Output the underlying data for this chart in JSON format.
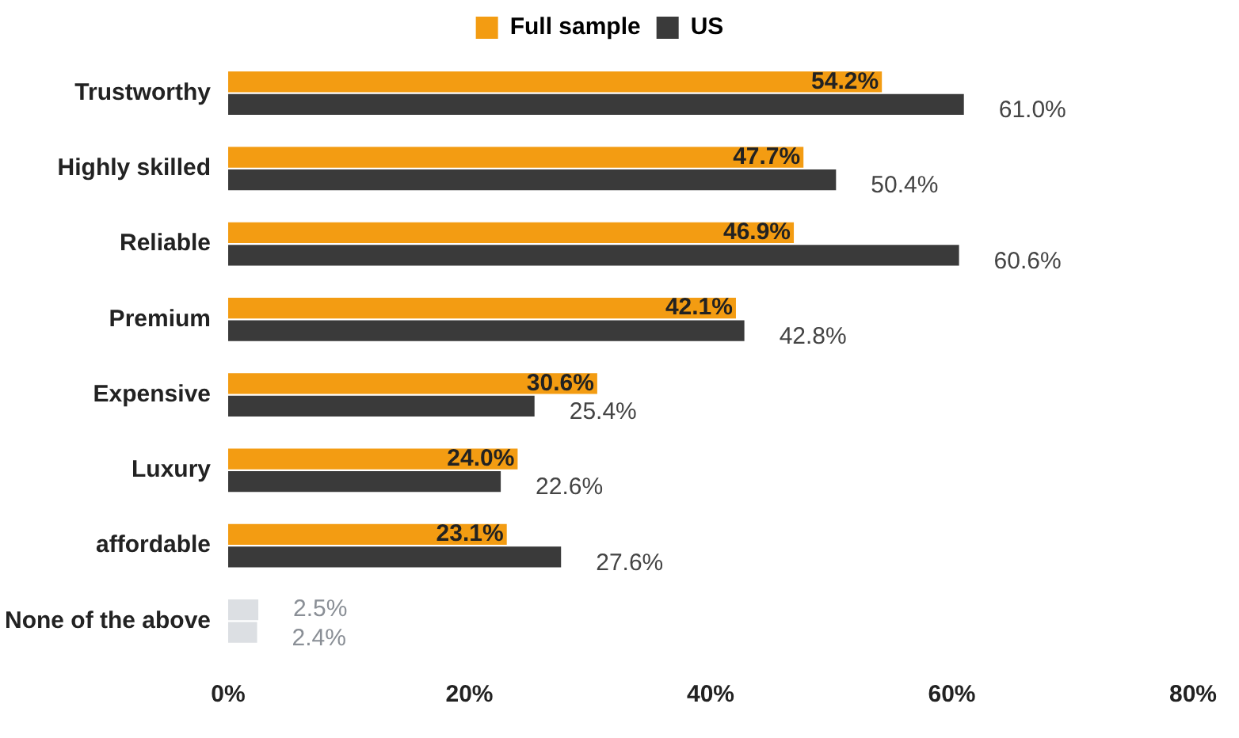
{
  "chart_data": {
    "type": "bar",
    "orientation": "horizontal",
    "categories": [
      "Trustworthy",
      "Highly skilled",
      "Reliable",
      "Premium",
      "Expensive",
      "Luxury",
      "affordable",
      "None of the above"
    ],
    "series": [
      {
        "name": "Full sample",
        "color": "#f39c12",
        "colors": [
          "#f39c12",
          "#f39c12",
          "#f39c12",
          "#f39c12",
          "#f39c12",
          "#f39c12",
          "#f39c12",
          "#dcdfe3"
        ],
        "values": [
          54.2,
          47.7,
          46.9,
          42.1,
          30.6,
          24.0,
          23.1,
          2.5
        ],
        "value_labels": [
          "54.2%",
          "47.7%",
          "46.9%",
          "42.1%",
          "30.6%",
          "24.0%",
          "23.1%",
          "2.5%"
        ]
      },
      {
        "name": "US",
        "color": "#3a3a3a",
        "colors": [
          "#3a3a3a",
          "#3a3a3a",
          "#3a3a3a",
          "#3a3a3a",
          "#3a3a3a",
          "#3a3a3a",
          "#3a3a3a",
          "#dcdfe3"
        ],
        "values": [
          61.0,
          50.4,
          60.6,
          42.8,
          25.4,
          22.6,
          27.6,
          2.4
        ],
        "value_labels": [
          "61.0%",
          "50.4%",
          "60.6%",
          "42.8%",
          "25.4%",
          "22.6%",
          "27.6%",
          "2.4%"
        ]
      }
    ],
    "xlim": [
      0,
      80
    ],
    "xticks": [
      {
        "value": 0,
        "label": "0%"
      },
      {
        "value": 20,
        "label": "20%"
      },
      {
        "value": 40,
        "label": "40%"
      },
      {
        "value": 60,
        "label": "60%"
      },
      {
        "value": 80,
        "label": "80%"
      }
    ],
    "grid": false,
    "legend": "top"
  }
}
